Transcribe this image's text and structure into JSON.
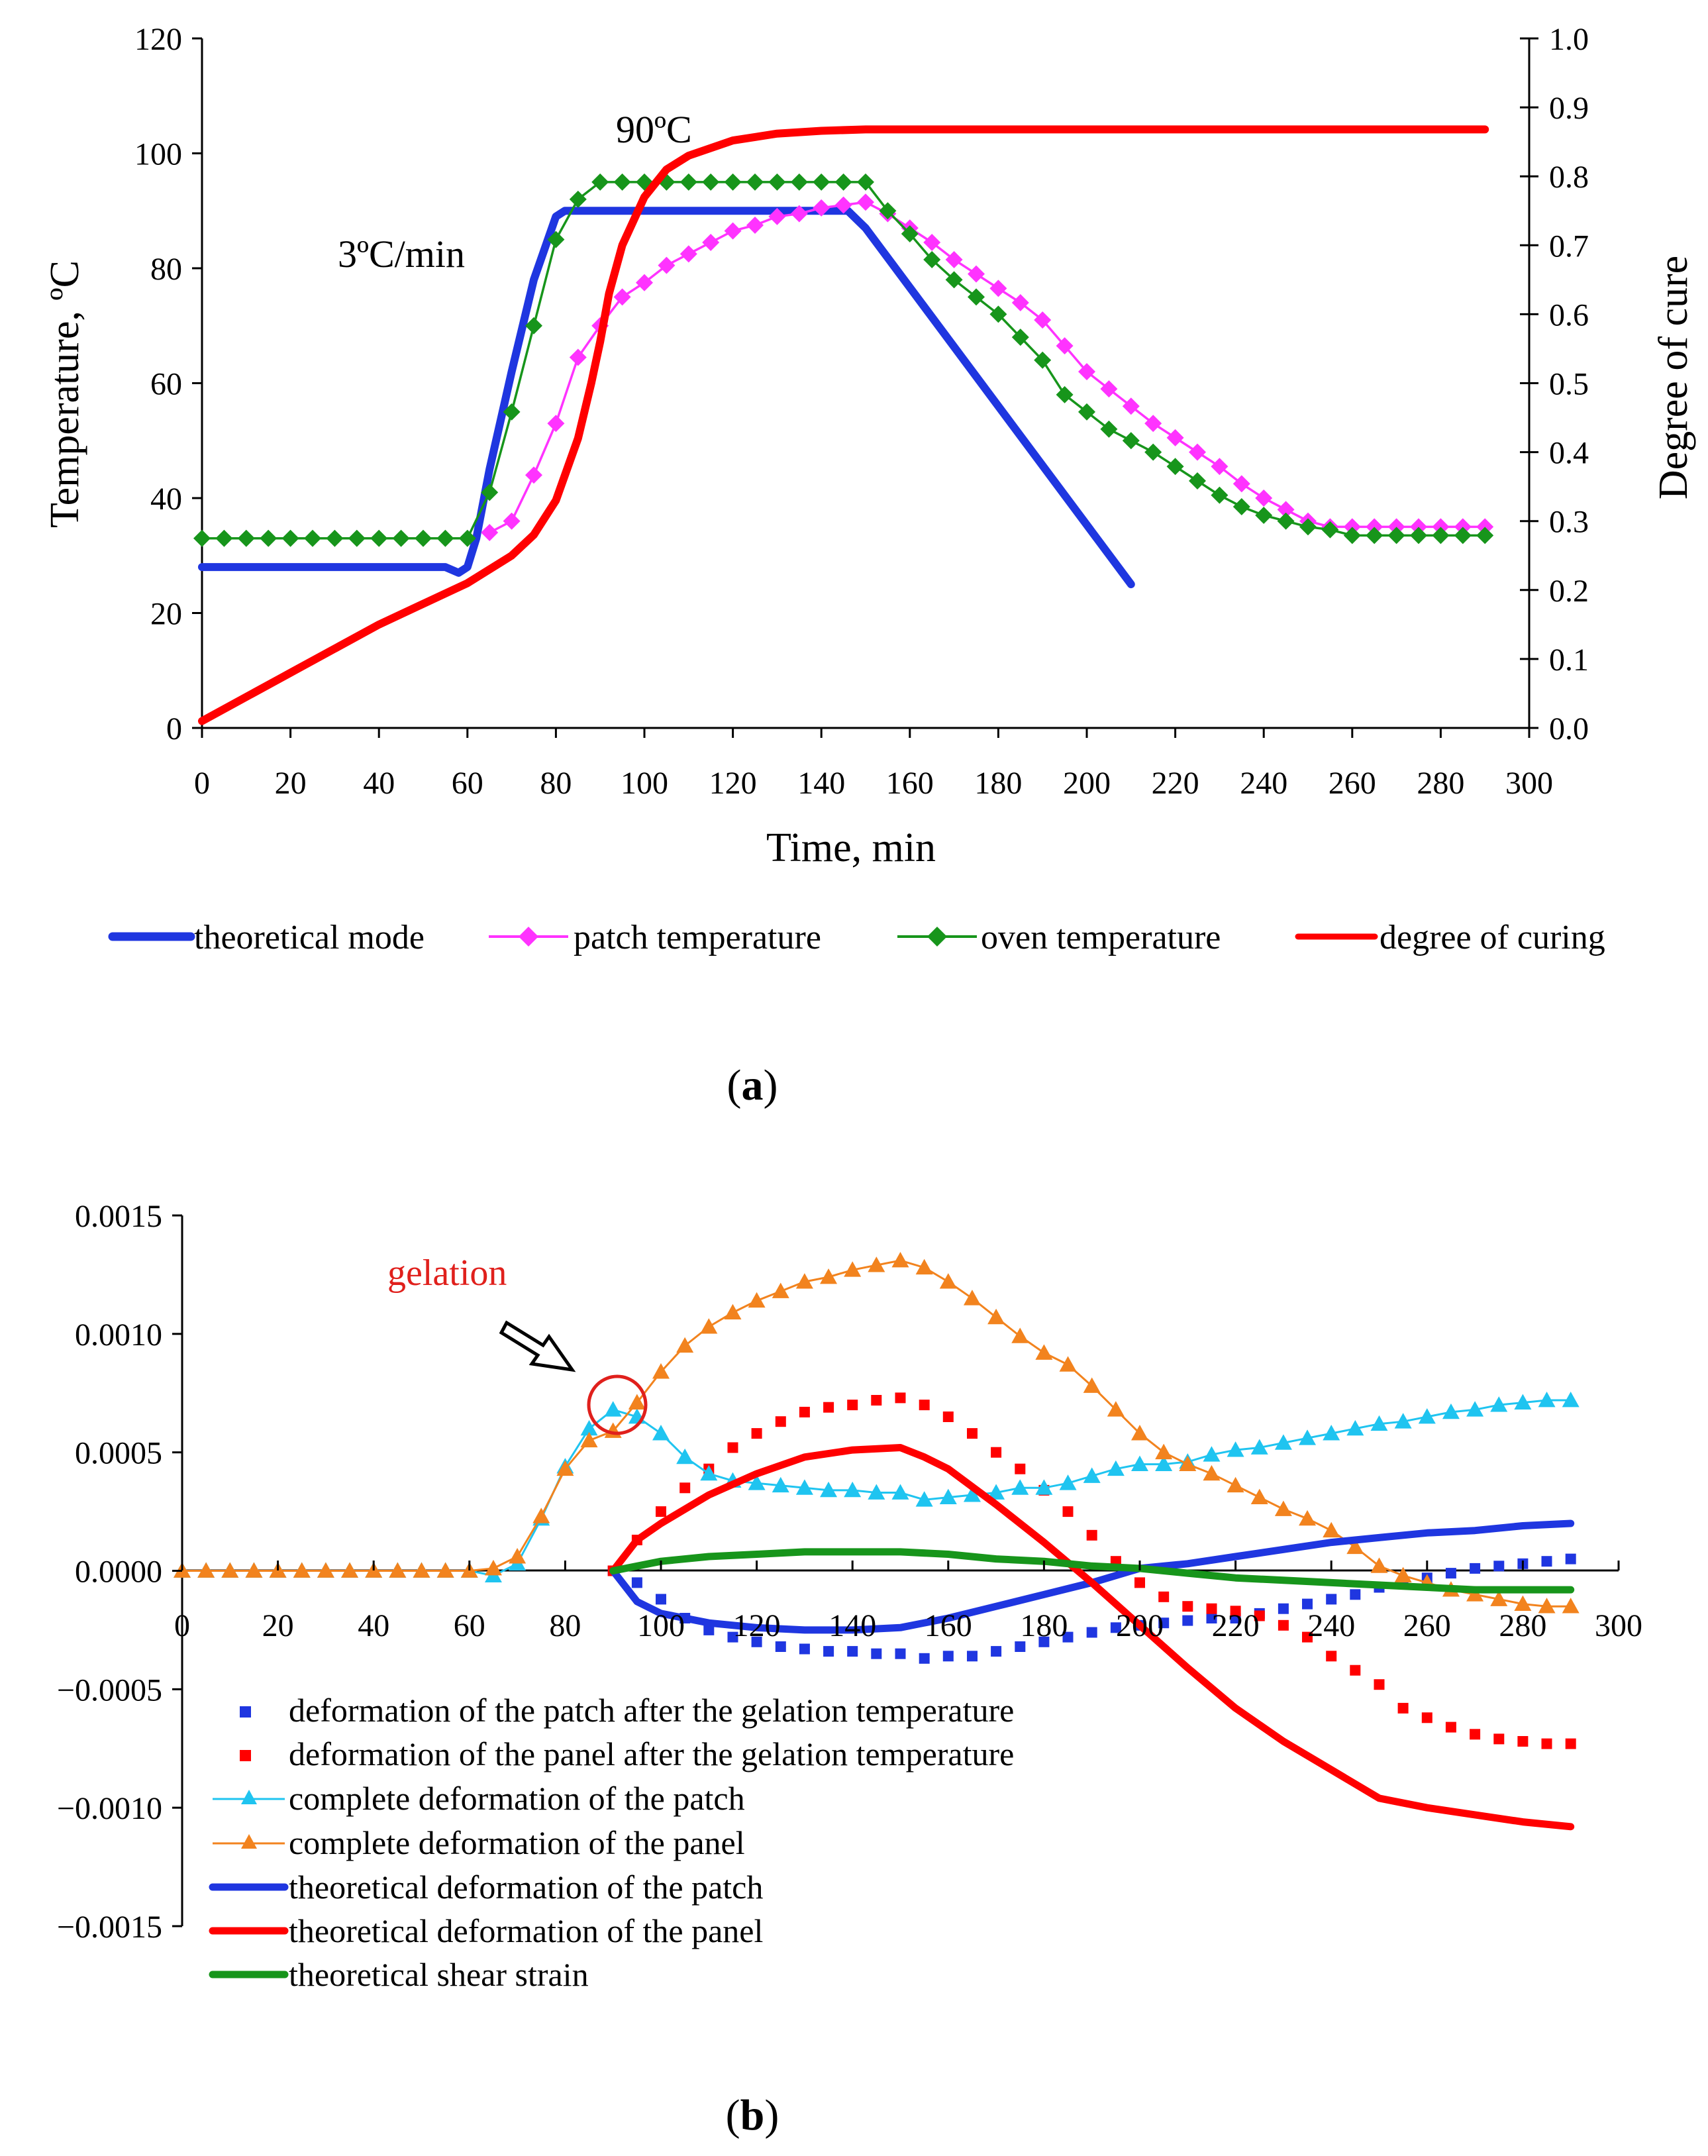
{
  "chart_data": [
    {
      "id": "a",
      "type": "line",
      "panel_label": {
        "open": "(",
        "letter": "a",
        "close": ")"
      },
      "xlabel": "Time, min",
      "ylabel_left": "Temperature, ºC",
      "ylabel_right": "Degree of cure",
      "xlim": [
        0,
        300
      ],
      "ylim_left": [
        0,
        120
      ],
      "ylim_right": [
        0,
        1
      ],
      "x_ticks": [
        0,
        20,
        40,
        60,
        80,
        100,
        120,
        140,
        160,
        180,
        200,
        220,
        240,
        260,
        280,
        300
      ],
      "y_ticks_left": [
        "0",
        "20",
        "40",
        "60",
        "80",
        "100",
        "120"
      ],
      "y_ticks_right": [
        "0.0",
        "0.1",
        "0.2",
        "0.3",
        "0.4",
        "0.5",
        "0.6",
        "0.7",
        "0.8",
        "0.9",
        "1.0"
      ],
      "annotations": [
        {
          "text": "3ºC/min",
          "x": 49,
          "y": 82
        },
        {
          "text": "90ºC",
          "x": 95,
          "y": 104
        }
      ],
      "series": [
        {
          "name": "theoretical mode",
          "axis": "left",
          "color": "#1f36e0",
          "style": "thick",
          "x": [
            0,
            55,
            58,
            60,
            62,
            65,
            70,
            75,
            80,
            82,
            85,
            90,
            146,
            150,
            210
          ],
          "y": [
            28,
            28,
            27,
            28,
            33,
            45,
            62,
            78,
            89,
            90,
            90,
            90,
            90,
            87,
            25
          ]
        },
        {
          "name": "patch temperature",
          "axis": "left",
          "color": "#ff33ff",
          "style": "marker-diamond",
          "x": [
            65,
            70,
            75,
            80,
            85,
            90,
            95,
            100,
            105,
            110,
            115,
            120,
            125,
            130,
            135,
            140,
            145,
            150,
            155,
            160,
            165,
            170,
            175,
            180,
            185,
            190,
            195,
            200,
            205,
            210,
            215,
            220,
            225,
            230,
            235,
            240,
            245,
            250,
            255,
            260,
            265,
            270,
            275,
            280,
            285,
            290
          ],
          "y": [
            34,
            36,
            44,
            53,
            64.5,
            70,
            75,
            77.5,
            80.5,
            82.5,
            84.5,
            86.5,
            87.5,
            89,
            89.5,
            90.5,
            91,
            91.5,
            89.5,
            87,
            84.5,
            81.5,
            79,
            76.5,
            74,
            71,
            66.5,
            62,
            59,
            56,
            53,
            50.5,
            48,
            45.5,
            42.5,
            40,
            38,
            36,
            35,
            35,
            35,
            35,
            35,
            35,
            35,
            35
          ]
        },
        {
          "name": "oven temperature",
          "axis": "left",
          "color": "#17951b",
          "style": "marker-diamond",
          "x": [
            0,
            5,
            10,
            15,
            20,
            25,
            30,
            35,
            40,
            45,
            50,
            55,
            60,
            65,
            70,
            75,
            80,
            85,
            90,
            95,
            100,
            105,
            110,
            115,
            120,
            125,
            130,
            135,
            140,
            145,
            150,
            155,
            160,
            165,
            170,
            175,
            180,
            185,
            190,
            195,
            200,
            205,
            210,
            215,
            220,
            225,
            230,
            235,
            240,
            245,
            250,
            255,
            260,
            265,
            270,
            275,
            280,
            285,
            290
          ],
          "y": [
            33,
            33,
            33,
            33,
            33,
            33,
            33,
            33,
            33,
            33,
            33,
            33,
            33,
            41,
            55,
            70,
            85,
            92,
            95,
            95,
            95,
            95,
            95,
            95,
            95,
            95,
            95,
            95,
            95,
            95,
            95,
            90,
            86,
            81.5,
            78,
            75,
            72,
            68,
            64,
            58,
            55,
            52,
            50,
            48,
            45.5,
            43,
            40.5,
            38.5,
            37,
            36,
            35,
            34.5,
            33.5,
            33.5,
            33.5,
            33.5,
            33.5,
            33.5,
            33.5
          ]
        },
        {
          "name": "degree of curing",
          "axis": "right",
          "color": "#ff0000",
          "style": "thick",
          "x": [
            0,
            20,
            40,
            60,
            70,
            75,
            80,
            85,
            88,
            90,
            92,
            95,
            100,
            105,
            110,
            120,
            130,
            140,
            150,
            160,
            200,
            250,
            290
          ],
          "y": [
            0.01,
            0.08,
            0.15,
            0.21,
            0.25,
            0.28,
            0.33,
            0.42,
            0.5,
            0.56,
            0.63,
            0.7,
            0.77,
            0.81,
            0.83,
            0.852,
            0.862,
            0.866,
            0.868,
            0.868,
            0.868,
            0.868,
            0.868
          ]
        }
      ]
    },
    {
      "id": "b",
      "type": "line",
      "panel_label": {
        "open": "(",
        "letter": "b",
        "close": ")"
      },
      "xlim": [
        0,
        300
      ],
      "ylim": [
        -0.0015,
        0.0015
      ],
      "x_ticks": [
        0,
        20,
        40,
        60,
        80,
        100,
        120,
        140,
        160,
        180,
        200,
        220,
        240,
        260,
        280,
        300
      ],
      "y_ticks": [
        "0.0015",
        "0.0010",
        "0.0005",
        "0.0000",
        "−0.0005",
        "−0.0010",
        "−0.0015"
      ],
      "annotations": [
        {
          "text": "gelation",
          "x": 70,
          "y": 0.00125
        }
      ],
      "series": [
        {
          "name": "deformation of the patch after the gelation temperature",
          "color": "#1f36e0",
          "style": "square-dots",
          "x": [
            90,
            95,
            100,
            105,
            110,
            115,
            120,
            125,
            130,
            135,
            140,
            145,
            150,
            155,
            160,
            165,
            170,
            175,
            180,
            185,
            190,
            195,
            200,
            205,
            210,
            215,
            220,
            225,
            230,
            235,
            240,
            245,
            250,
            255,
            260,
            265,
            270,
            275,
            280,
            285,
            290
          ],
          "y": [
            0,
            -5e-05,
            -0.00012,
            -0.0002,
            -0.00025,
            -0.00028,
            -0.0003,
            -0.00032,
            -0.00033,
            -0.00034,
            -0.00034,
            -0.00035,
            -0.00035,
            -0.00037,
            -0.00036,
            -0.00036,
            -0.00034,
            -0.00032,
            -0.0003,
            -0.00028,
            -0.00026,
            -0.00024,
            -0.00023,
            -0.00022,
            -0.00021,
            -0.0002,
            -0.0002,
            -0.00018,
            -0.00016,
            -0.00014,
            -0.00012,
            -0.0001,
            -7e-05,
            -5e-05,
            -3e-05,
            -1e-05,
            1e-05,
            2e-05,
            3e-05,
            4e-05,
            5e-05
          ]
        },
        {
          "name": "deformation of the panel after the gelation temperature",
          "color": "#ff0000",
          "style": "square-dots",
          "x": [
            90,
            95,
            100,
            105,
            110,
            115,
            120,
            125,
            130,
            135,
            140,
            145,
            150,
            155,
            160,
            165,
            170,
            175,
            180,
            185,
            190,
            195,
            200,
            205,
            210,
            215,
            220,
            225,
            230,
            235,
            240,
            245,
            250,
            255,
            260,
            265,
            270,
            275,
            280,
            285,
            290
          ],
          "y": [
            0,
            0.00013,
            0.00025,
            0.00035,
            0.00043,
            0.00052,
            0.00058,
            0.00063,
            0.00067,
            0.00069,
            0.0007,
            0.00072,
            0.00073,
            0.0007,
            0.00065,
            0.00058,
            0.0005,
            0.00043,
            0.00034,
            0.00025,
            0.00015,
            4e-05,
            -5e-05,
            -0.00011,
            -0.00015,
            -0.00016,
            -0.00017,
            -0.00019,
            -0.00023,
            -0.00028,
            -0.00036,
            -0.00042,
            -0.00048,
            -0.00058,
            -0.00062,
            -0.00066,
            -0.00069,
            -0.00071,
            -0.00072,
            -0.00073,
            -0.00073
          ]
        },
        {
          "name": "complete deformation of the patch",
          "color": "#1fc4f0",
          "style": "marker-triangle",
          "x": [
            0,
            5,
            10,
            15,
            20,
            25,
            30,
            35,
            40,
            45,
            50,
            55,
            60,
            65,
            70,
            75,
            80,
            85,
            90,
            95,
            100,
            105,
            110,
            115,
            120,
            125,
            130,
            135,
            140,
            145,
            150,
            155,
            160,
            165,
            170,
            175,
            180,
            185,
            190,
            195,
            200,
            205,
            210,
            215,
            220,
            225,
            230,
            235,
            240,
            245,
            250,
            255,
            260,
            265,
            270,
            275,
            280,
            285,
            290
          ],
          "y": [
            0,
            0,
            0,
            0,
            0,
            0,
            0,
            0,
            0,
            0,
            0,
            0,
            0,
            -2e-05,
            3e-05,
            0.00022,
            0.00044,
            0.0006,
            0.00068,
            0.00065,
            0.00058,
            0.00048,
            0.00041,
            0.00038,
            0.00037,
            0.00036,
            0.00035,
            0.00034,
            0.00034,
            0.00033,
            0.00033,
            0.0003,
            0.00031,
            0.00032,
            0.00033,
            0.00035,
            0.00035,
            0.00037,
            0.0004,
            0.00043,
            0.00045,
            0.00045,
            0.00046,
            0.00049,
            0.00051,
            0.00052,
            0.00054,
            0.00056,
            0.00058,
            0.0006,
            0.00062,
            0.00063,
            0.00065,
            0.00067,
            0.00068,
            0.0007,
            0.00071,
            0.00072,
            0.00072
          ]
        },
        {
          "name": "complete deformation of the panel",
          "color": "#f2831e",
          "style": "marker-triangle",
          "x": [
            0,
            5,
            10,
            15,
            20,
            25,
            30,
            35,
            40,
            45,
            50,
            55,
            60,
            65,
            70,
            75,
            80,
            85,
            90,
            95,
            100,
            105,
            110,
            115,
            120,
            125,
            130,
            135,
            140,
            145,
            150,
            155,
            160,
            165,
            170,
            175,
            180,
            185,
            190,
            195,
            200,
            205,
            210,
            215,
            220,
            225,
            230,
            235,
            240,
            245,
            250,
            255,
            260,
            265,
            270,
            275,
            280,
            285,
            290
          ],
          "y": [
            0,
            0,
            0,
            0,
            0,
            0,
            0,
            0,
            0,
            0,
            0,
            0,
            0,
            1e-05,
            6e-05,
            0.00023,
            0.00043,
            0.00055,
            0.00059,
            0.00071,
            0.00084,
            0.00095,
            0.00103,
            0.00109,
            0.00114,
            0.00118,
            0.00122,
            0.00124,
            0.00127,
            0.00129,
            0.00131,
            0.00128,
            0.00122,
            0.00115,
            0.00107,
            0.00099,
            0.00092,
            0.00087,
            0.00078,
            0.00068,
            0.00058,
            0.0005,
            0.00045,
            0.00041,
            0.00036,
            0.00031,
            0.00026,
            0.00022,
            0.00017,
            0.0001,
            2e-05,
            -2e-05,
            -5e-05,
            -8e-05,
            -0.0001,
            -0.00012,
            -0.00014,
            -0.00015,
            -0.00015
          ]
        },
        {
          "name": "theoretical deformation of the patch",
          "color": "#1f36e0",
          "style": "thick",
          "x": [
            90,
            95,
            100,
            105,
            110,
            120,
            130,
            140,
            150,
            160,
            170,
            180,
            190,
            200,
            210,
            220,
            230,
            240,
            250,
            260,
            270,
            280,
            290
          ],
          "y": [
            0,
            -0.00013,
            -0.00018,
            -0.0002,
            -0.00022,
            -0.00024,
            -0.00025,
            -0.00025,
            -0.00024,
            -0.0002,
            -0.00015,
            -0.0001,
            -5e-05,
            1e-05,
            3e-05,
            6e-05,
            9e-05,
            0.00012,
            0.00014,
            0.00016,
            0.00017,
            0.00019,
            0.0002
          ]
        },
        {
          "name": "theoretical deformation of the panel",
          "color": "#ff0000",
          "style": "thick",
          "x": [
            90,
            95,
            100,
            110,
            120,
            130,
            140,
            150,
            155,
            160,
            170,
            180,
            190,
            200,
            210,
            220,
            230,
            240,
            250,
            260,
            270,
            280,
            290
          ],
          "y": [
            0,
            0.00013,
            0.0002,
            0.00032,
            0.00041,
            0.00048,
            0.00051,
            0.00052,
            0.00048,
            0.00043,
            0.00028,
            0.00012,
            -5e-05,
            -0.00023,
            -0.00041,
            -0.00058,
            -0.00072,
            -0.00084,
            -0.00096,
            -0.001,
            -0.00103,
            -0.00106,
            -0.00108
          ]
        },
        {
          "name": "theoretical shear strain",
          "color": "#17951b",
          "style": "thick",
          "x": [
            90,
            100,
            110,
            120,
            130,
            140,
            150,
            160,
            170,
            180,
            190,
            200,
            210,
            220,
            230,
            240,
            250,
            260,
            270,
            280,
            290
          ],
          "y": [
            0,
            4e-05,
            6e-05,
            7e-05,
            8e-05,
            8e-05,
            8e-05,
            7e-05,
            5e-05,
            4e-05,
            2e-05,
            1e-05,
            -1e-05,
            -3e-05,
            -4e-05,
            -5e-05,
            -6e-05,
            -7e-05,
            -8e-05,
            -8e-05,
            -8e-05
          ]
        }
      ]
    }
  ]
}
